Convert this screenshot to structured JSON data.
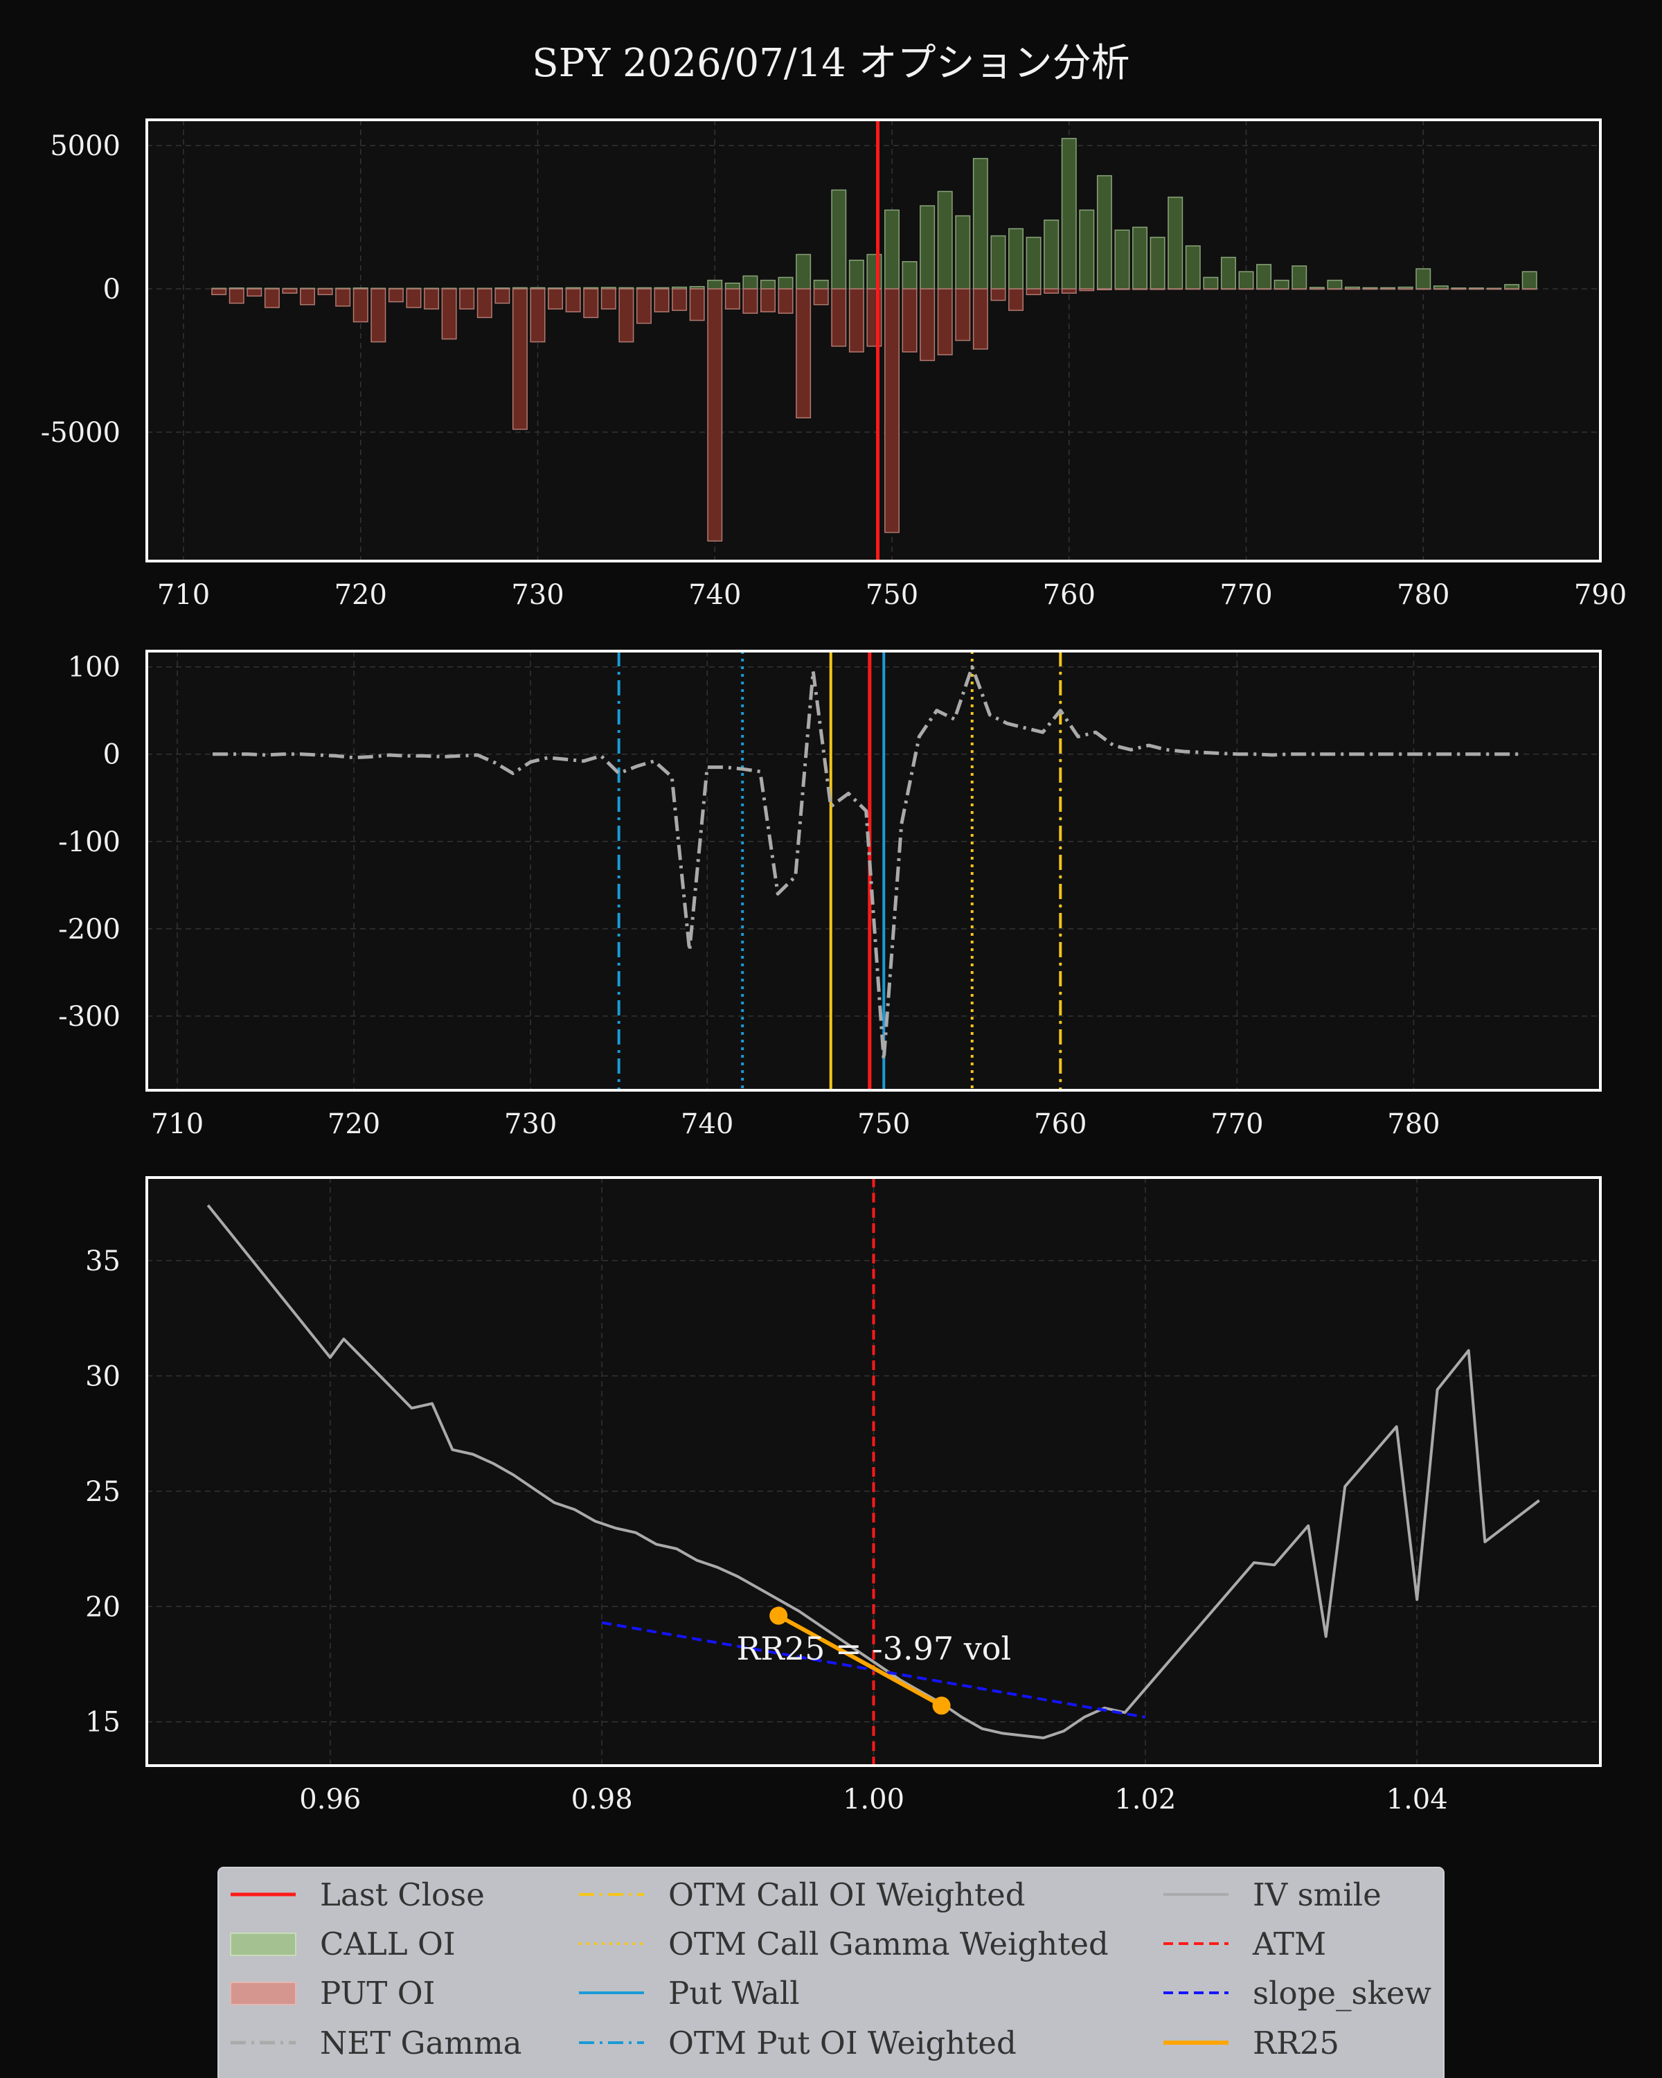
{
  "title": "SPY 2026/07/14 オプション分析",
  "colors": {
    "background": "#0b0b0b",
    "plot_bg": "#101010",
    "call_bar": "#3e5a2e",
    "put_bar": "#6b2a22",
    "last_close": "#ff1a1a",
    "otm_call": "#f5c518",
    "put_wall": "#1a9bd7",
    "net_gamma": "#aaaaaa",
    "iv_smile": "#aaaaaa",
    "atm": "#ff1a1a",
    "slope": "#1414ff",
    "rr25": "#ffa500"
  },
  "chart_data": [
    {
      "type": "bar",
      "name": "oi",
      "x": [
        712,
        713,
        714,
        715,
        716,
        717,
        718,
        719,
        720,
        721,
        722,
        723,
        724,
        725,
        726,
        727,
        728,
        729,
        730,
        731,
        732,
        733,
        734,
        735,
        736,
        737,
        738,
        739,
        740,
        741,
        742,
        743,
        744,
        745,
        746,
        747,
        748,
        749,
        750,
        751,
        752,
        753,
        754,
        755,
        756,
        757,
        758,
        759,
        760,
        761,
        762,
        763,
        764,
        765,
        766,
        767,
        768,
        769,
        770,
        771,
        772,
        773,
        774,
        775,
        776,
        777,
        778,
        779,
        780,
        781,
        782,
        783,
        784,
        785,
        786
      ],
      "call_oi": [
        20,
        30,
        25,
        20,
        15,
        20,
        15,
        20,
        30,
        20,
        15,
        20,
        20,
        20,
        20,
        20,
        30,
        40,
        40,
        30,
        40,
        40,
        50,
        40,
        40,
        40,
        60,
        80,
        300,
        200,
        450,
        300,
        400,
        1200,
        300,
        3450,
        1000,
        1200,
        2750,
        950,
        2900,
        3400,
        2550,
        4550,
        1850,
        2100,
        1800,
        2400,
        5250,
        2750,
        3950,
        2050,
        2150,
        1800,
        3200,
        1500,
        400,
        1100,
        600,
        850,
        300,
        800,
        50,
        300,
        60,
        40,
        40,
        60,
        700,
        100,
        30,
        30,
        20,
        150,
        600
      ],
      "put_oi": [
        -200,
        -500,
        -250,
        -650,
        -150,
        -550,
        -200,
        -600,
        -1150,
        -1850,
        -450,
        -650,
        -700,
        -1750,
        -700,
        -1000,
        -500,
        -4900,
        -1850,
        -700,
        -800,
        -1000,
        -700,
        -1850,
        -1200,
        -800,
        -750,
        -1100,
        -8800,
        -700,
        -850,
        -800,
        -850,
        -4500,
        -550,
        -2000,
        -2200,
        -2000,
        -8500,
        -2200,
        -2500,
        -2300,
        -1800,
        -2100,
        -400,
        -750,
        -200,
        -150,
        -150,
        -60,
        -30,
        -20,
        -20,
        -20,
        -10,
        -10,
        -10,
        -10,
        -10,
        -10,
        -10,
        -10,
        -10,
        -10,
        -10,
        -10,
        -10,
        -10,
        -10,
        -10,
        -10,
        -10,
        -10,
        -10,
        -10
      ],
      "xlim": [
        710,
        790
      ],
      "ylim": [
        -9500,
        5900
      ],
      "xticks": [
        "710",
        "720",
        "730",
        "740",
        "750",
        "760",
        "770",
        "780",
        "790"
      ],
      "yticks": [
        "5000",
        "0",
        "-5000"
      ],
      "last_close": 749.2
    },
    {
      "type": "line",
      "name": "net_gamma",
      "x": [
        712,
        713,
        714,
        715,
        716,
        717,
        718,
        719,
        720,
        721,
        722,
        723,
        724,
        725,
        726,
        727,
        728,
        729,
        730,
        731,
        732,
        733,
        734,
        735,
        736,
        737,
        738,
        739,
        740,
        741,
        742,
        743,
        744,
        745,
        746,
        747,
        748,
        749,
        750,
        751,
        752,
        753,
        754,
        755,
        756,
        757,
        758,
        759,
        760,
        761,
        762,
        763,
        764,
        765,
        766,
        767,
        768,
        769,
        770,
        771,
        772,
        773,
        774,
        775,
        776,
        777,
        778,
        779,
        780,
        781,
        782,
        783,
        784,
        785,
        786
      ],
      "y": [
        0,
        0,
        0,
        -1,
        0,
        0,
        -1,
        -2,
        -4,
        -3,
        -1,
        -2,
        -2,
        -3,
        -2,
        -1,
        -10,
        -22,
        -9,
        -4,
        -6,
        -8,
        -2,
        -22,
        -14,
        -8,
        -26,
        -225,
        -15,
        -15,
        -17,
        -20,
        -160,
        -140,
        95,
        -60,
        -45,
        -65,
        -350,
        -80,
        20,
        50,
        40,
        100,
        45,
        35,
        30,
        25,
        50,
        20,
        25,
        10,
        5,
        10,
        5,
        3,
        2,
        1,
        0,
        0,
        -1,
        0,
        0,
        0,
        0,
        0,
        0,
        0,
        0,
        0,
        0,
        0,
        0,
        0,
        0
      ],
      "xlim": [
        710,
        791
      ],
      "ylim": [
        -385,
        118
      ],
      "xticks": [
        "710",
        "720",
        "730",
        "740",
        "750",
        "760",
        "770",
        "780"
      ],
      "yticks": [
        "100",
        "0",
        "-100",
        "-200",
        "-300"
      ],
      "markers": {
        "last_close": 749.2,
        "otm_call_oi_weighted": 760,
        "otm_call_gamma_weighted": 755,
        "put_wall": 750,
        "otm_put_oi_weighted": 735,
        "otm_put_gamma_weighted": 742,
        "otm_call_oi_solid": 747
      }
    },
    {
      "type": "line",
      "name": "iv_smile",
      "x": [
        0.951,
        0.96,
        0.961,
        0.966,
        0.9675,
        0.969,
        0.9705,
        0.972,
        0.9735,
        0.975,
        0.9765,
        0.978,
        0.9795,
        0.981,
        0.9825,
        0.984,
        0.9855,
        0.987,
        0.9885,
        0.99,
        0.9915,
        0.993,
        0.9945,
        0.996,
        0.9975,
        0.999,
        1.0005,
        1.002,
        1.0035,
        1.005,
        1.0065,
        1.008,
        1.0095,
        1.011,
        1.0125,
        1.014,
        1.0155,
        1.017,
        1.0185,
        1.028,
        1.0295,
        1.032,
        1.0333,
        1.0347,
        1.0385,
        1.04,
        1.0415,
        1.0438,
        1.045,
        1.049
      ],
      "y": [
        37.4,
        30.8,
        31.6,
        28.6,
        28.8,
        26.8,
        26.6,
        26.2,
        25.7,
        25.1,
        24.5,
        24.2,
        23.7,
        23.4,
        23.2,
        22.7,
        22.5,
        22.0,
        21.7,
        21.3,
        20.8,
        20.3,
        19.8,
        19.2,
        18.6,
        18.0,
        17.4,
        16.8,
        16.3,
        15.8,
        15.2,
        14.7,
        14.5,
        14.4,
        14.3,
        14.6,
        15.2,
        15.6,
        15.4,
        21.9,
        21.8,
        23.5,
        18.7,
        25.2,
        27.8,
        20.3,
        29.4,
        31.1,
        22.8,
        24.6
      ],
      "xlim": [
        0.9465,
        1.0535
      ],
      "ylim": [
        13.1,
        38.6
      ],
      "xticks": [
        "0.96",
        "0.98",
        "1.00",
        "1.02",
        "1.04"
      ],
      "yticks": [
        "35",
        "30",
        "25",
        "20",
        "15"
      ],
      "atm": 1.0,
      "slope_skew": {
        "x": [
          0.98,
          1.02
        ],
        "y": [
          19.3,
          15.2
        ]
      },
      "rr25": {
        "x": [
          0.993,
          1.005
        ],
        "y": [
          19.6,
          15.7
        ]
      },
      "annotation": "RR25 = -3.97 vol"
    }
  ],
  "legend": {
    "items": [
      "Last Close",
      "CALL OI",
      "PUT OI",
      "NET Gamma",
      "OTM Call OI Weighted",
      "OTM Call Gamma Weighted",
      "Put Wall",
      "OTM Put OI Weighted",
      "IV smile",
      "ATM",
      "slope_skew",
      "RR25"
    ]
  }
}
